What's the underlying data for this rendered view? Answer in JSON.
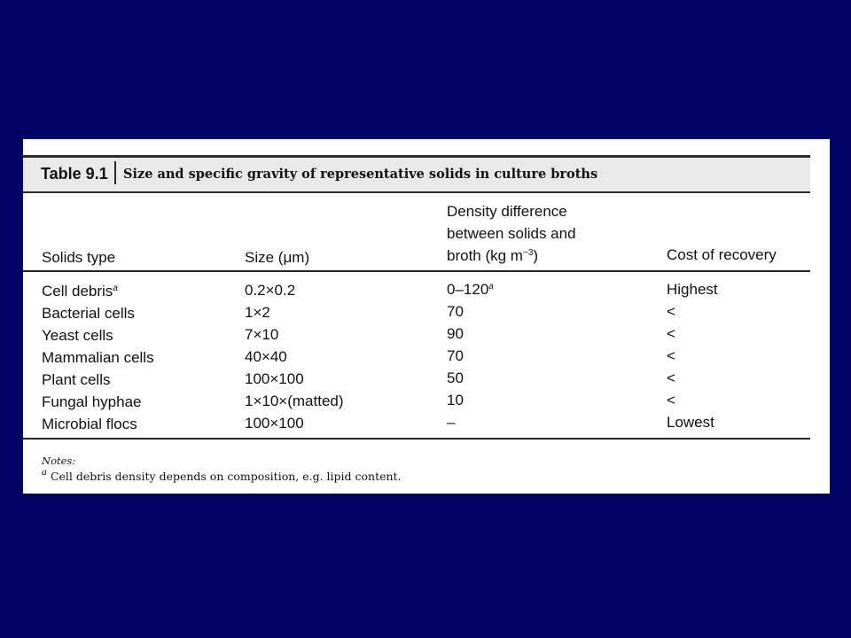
{
  "table": {
    "label": "Table 9.1",
    "caption": "Size and specific gravity of representative solids in culture broths",
    "headers": {
      "solids_type": "Solids type",
      "size_prefix": "Size (",
      "size_unit": "μm",
      "size_suffix": ")",
      "density_line1": "Density difference",
      "density_line2": "between solids and",
      "density_line3_prefix": "broth (kg m",
      "density_line3_exp": "−3",
      "density_line3_suffix": ")",
      "cost": "Cost of recovery"
    },
    "rows": [
      {
        "type": "Cell debris",
        "type_mark": "a",
        "size": "0.2×0.2",
        "density": "0–120",
        "density_mark": "a",
        "cost": "Highest"
      },
      {
        "type": "Bacterial cells",
        "size": "1×2",
        "density": "70",
        "cost": "<"
      },
      {
        "type": "Yeast cells",
        "size": "7×10",
        "density": "90",
        "cost": "<"
      },
      {
        "type": "Mammalian cells",
        "size": "40×40",
        "density": "70",
        "cost": "<"
      },
      {
        "type": "Plant cells",
        "size": "100×100",
        "density": "50",
        "cost": "<"
      },
      {
        "type": "Fungal hyphae",
        "size": "1×10×(matted)",
        "density": "10",
        "cost": "<"
      },
      {
        "type": "Microbial flocs",
        "size": "100×100",
        "density": "–",
        "cost": "Lowest"
      }
    ]
  },
  "notes": {
    "label": "Notes:",
    "mark": "a",
    "text": "Cell debris density depends on composition, e.g. lipid content."
  }
}
